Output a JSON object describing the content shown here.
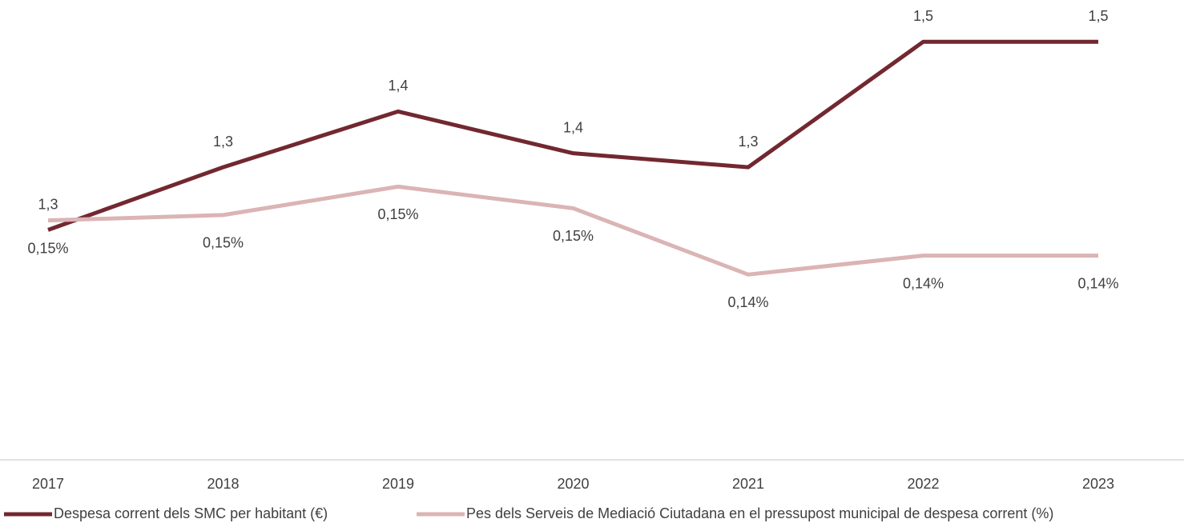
{
  "chart_data": {
    "type": "line",
    "categories": [
      "2017",
      "2018",
      "2019",
      "2020",
      "2021",
      "2022",
      "2023"
    ],
    "series": [
      {
        "name": "Despesa corrent dels SMC per habitant (€)",
        "color": "#722830",
        "values": [
          1.25,
          1.34,
          1.42,
          1.36,
          1.34,
          1.52,
          1.52
        ],
        "value_labels": [
          "1,3",
          "1,3",
          "1,4",
          "1,4",
          "1,3",
          "1,5",
          "1,5"
        ]
      },
      {
        "name": "Pes dels Serveis de Mediació Ciutadana en el pressupost municipal de despesa corrent (%)",
        "color": "#dbb4b4",
        "axis": "y2",
        "values": [
          0.1465,
          0.1469,
          0.149,
          0.1474,
          0.1425,
          0.1439,
          0.1439
        ],
        "value_labels": [
          "0,15%",
          "0,15%",
          "0,15%",
          "0,15%",
          "0,14%",
          "0,14%",
          "0,14%"
        ]
      }
    ],
    "ylim": [
      0.92,
      1.58
    ],
    "y2lim": [
      0.1288,
      0.1628
    ],
    "grid": false,
    "legend": "bottom"
  }
}
